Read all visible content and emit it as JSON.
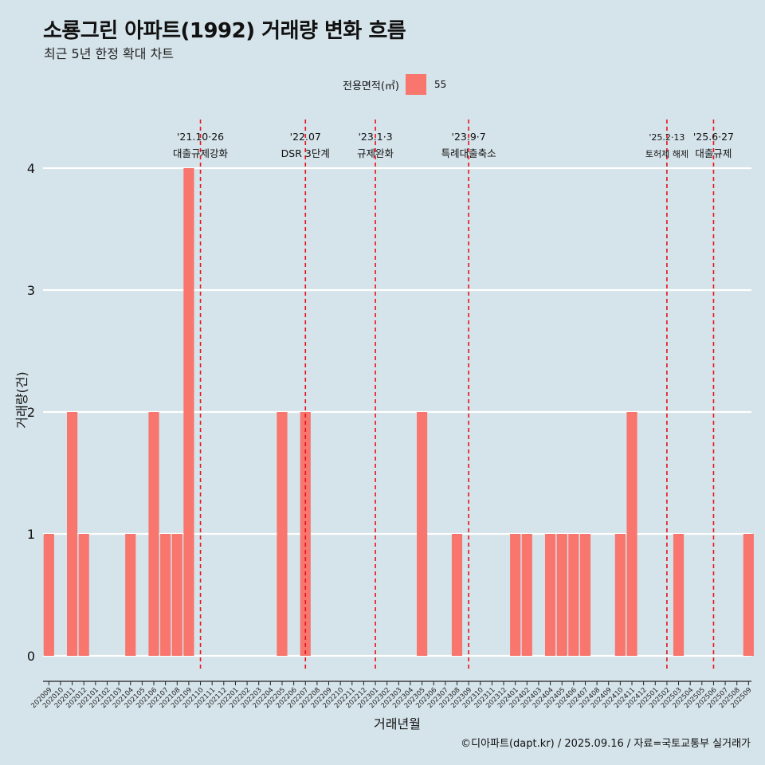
{
  "title": "소룡그린 아파트(1992) 거래량 변화 흐름",
  "subtitle": "최근 5년 한정 확대 차트",
  "legend": {
    "title": "전용면적(㎡)",
    "items": [
      {
        "label": "55",
        "color": "#f8766d"
      }
    ]
  },
  "caption": "©디아파트(dapt.kr) / 2025.09.16 / 자료=국토교통부 실거래가",
  "chart_data": {
    "type": "bar",
    "xlabel": "거래년월",
    "ylabel": "거래량(건)",
    "ylim": [
      0,
      4
    ],
    "yticks": [
      "0",
      "1",
      "2",
      "3",
      "4"
    ],
    "grid": true,
    "legend_position": "top",
    "categories": [
      "202009",
      "202010",
      "202011",
      "202012",
      "202101",
      "202102",
      "202103",
      "202104",
      "202105",
      "202106",
      "202107",
      "202108",
      "202109",
      "202110",
      "202111",
      "202112",
      "202201",
      "202202",
      "202203",
      "202204",
      "202205",
      "202206",
      "202207",
      "202208",
      "202209",
      "202210",
      "202211",
      "202212",
      "202301",
      "202302",
      "202303",
      "202304",
      "202305",
      "202306",
      "202307",
      "202308",
      "202309",
      "202310",
      "202311",
      "202312",
      "202401",
      "202402",
      "202403",
      "202404",
      "202405",
      "202406",
      "202407",
      "202408",
      "202409",
      "202410",
      "202411",
      "202412",
      "202501",
      "202502",
      "202503",
      "202504",
      "202505",
      "202506",
      "202507",
      "202508",
      "202509"
    ],
    "series": [
      {
        "name": "55",
        "color": "#f8766d",
        "values": [
          1,
          0,
          2,
          1,
          0,
          0,
          0,
          1,
          0,
          2,
          1,
          1,
          4,
          0,
          0,
          0,
          0,
          0,
          0,
          0,
          2,
          0,
          2,
          0,
          0,
          0,
          0,
          0,
          0,
          0,
          0,
          0,
          2,
          0,
          0,
          1,
          0,
          0,
          0,
          0,
          1,
          1,
          0,
          1,
          1,
          1,
          1,
          0,
          0,
          1,
          2,
          0,
          0,
          0,
          1,
          0,
          0,
          0,
          0,
          0,
          1
        ]
      }
    ],
    "annotations": [
      {
        "date_line": "'21.10·26",
        "label_line": "대출규제강화",
        "x": "202110"
      },
      {
        "date_line": "'22.07",
        "label_line": "DSR 3단계",
        "x": "202207"
      },
      {
        "date_line": "'23.1·3",
        "label_line": "규제완화",
        "x": "202301"
      },
      {
        "date_line": "'23.9·7",
        "label_line": "특례대출축소",
        "x": "202309"
      },
      {
        "date_line": "'25.2·13",
        "label_line": "토허제 해제",
        "x": "202502"
      },
      {
        "date_line": "'25.6·27",
        "label_line": "대출규제",
        "x": "202506"
      }
    ]
  }
}
